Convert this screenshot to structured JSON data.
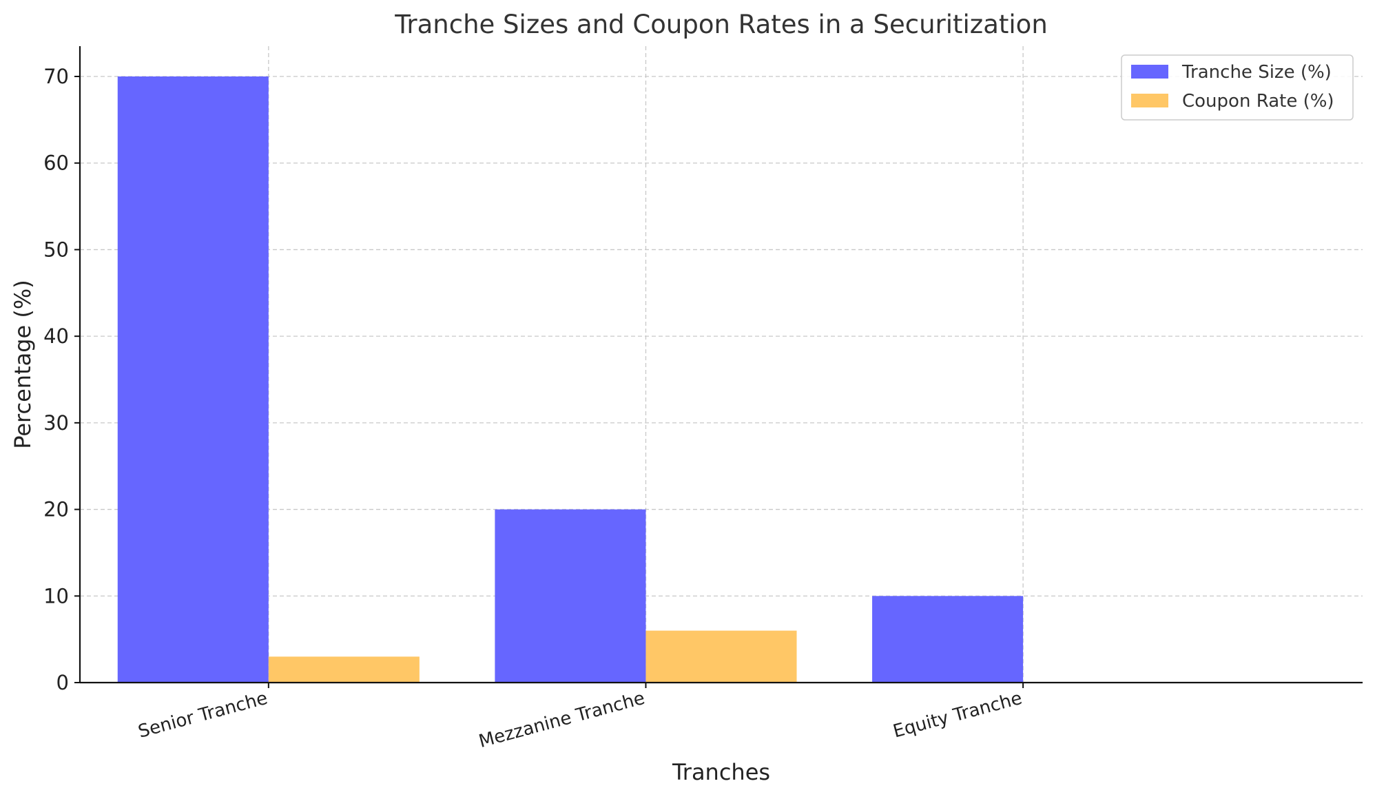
{
  "chart_data": {
    "type": "bar",
    "title": "Tranche Sizes and Coupon Rates in a Securitization",
    "xlabel": "Tranches",
    "ylabel": "Percentage (%)",
    "categories": [
      "Senior Tranche",
      "Mezzanine Tranche",
      "Equity Tranche"
    ],
    "series": [
      {
        "name": "Tranche Size (%)",
        "values": [
          70,
          20,
          10
        ],
        "color": "#6666ff"
      },
      {
        "name": "Coupon Rate (%)",
        "values": [
          3,
          6,
          0
        ],
        "color": "#ffc766"
      }
    ],
    "ylim": [
      0,
      73.5
    ],
    "yticks": [
      0,
      10,
      20,
      30,
      40,
      50,
      60,
      70
    ],
    "grid": true,
    "legend_position": "top-right"
  }
}
